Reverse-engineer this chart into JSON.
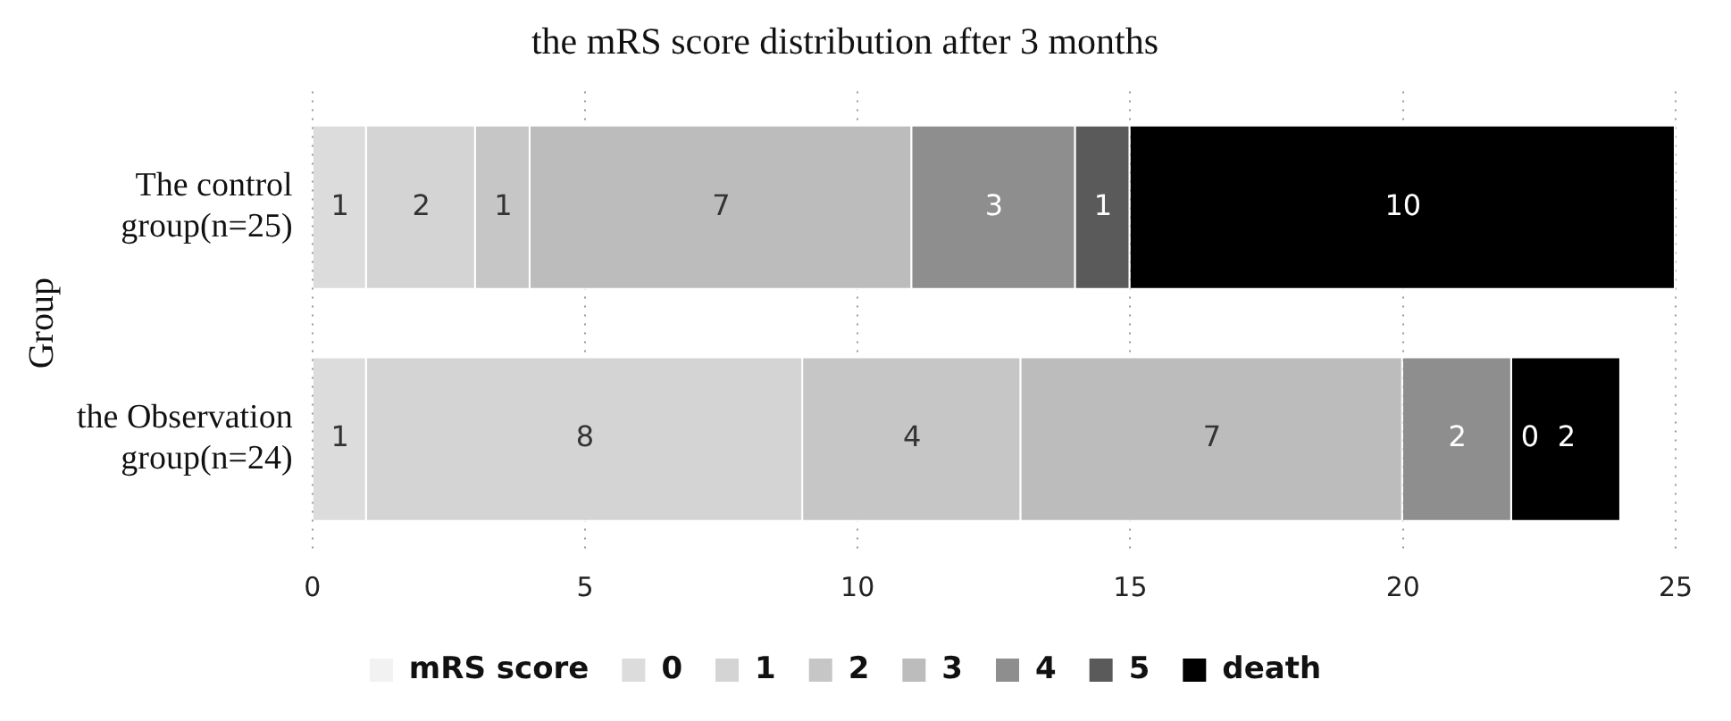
{
  "chart_data": {
    "type": "bar",
    "orientation": "horizontal",
    "stacked": true,
    "title": "the mRS score distribution after 3 months",
    "ylabel": "Group",
    "categories": [
      "The control group(n=25)",
      "the Observation group(n=24)"
    ],
    "series": [
      {
        "name": "mRS score",
        "color": "#f2f2f2",
        "values": [
          null,
          null
        ]
      },
      {
        "name": "0",
        "color": "#dcdcdc",
        "values": [
          1,
          1
        ]
      },
      {
        "name": "1",
        "color": "#d4d4d4",
        "values": [
          2,
          8
        ]
      },
      {
        "name": "2",
        "color": "#c6c6c6",
        "values": [
          1,
          4
        ]
      },
      {
        "name": "3",
        "color": "#bcbcbc",
        "values": [
          7,
          7
        ]
      },
      {
        "name": "4",
        "color": "#8e8e8e",
        "values": [
          3,
          2
        ]
      },
      {
        "name": "5",
        "color": "#5a5a5a",
        "values": [
          1,
          0
        ]
      },
      {
        "name": "death",
        "color": "#000000",
        "values": [
          10,
          2
        ]
      }
    ],
    "xlim": [
      0,
      25
    ],
    "xticks": [
      0,
      5,
      10,
      15,
      20,
      25
    ],
    "grid": "x",
    "legend": "bottom",
    "data_labels": true
  }
}
